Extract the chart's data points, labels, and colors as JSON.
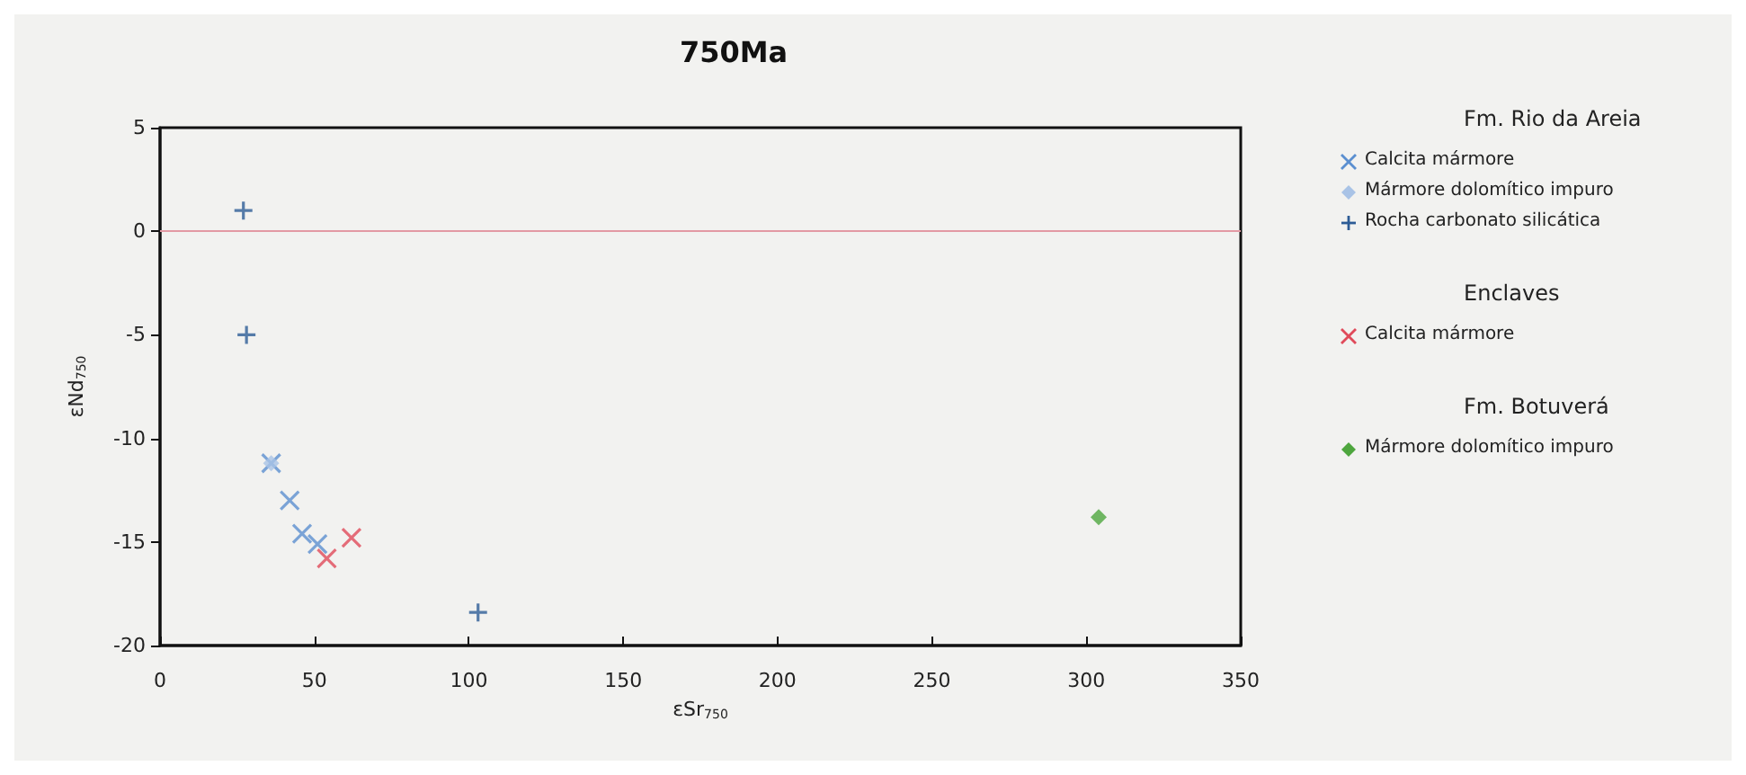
{
  "chart_data": {
    "type": "scatter",
    "title": "750Ma",
    "xlabel": "εSr$_{750}$",
    "ylabel": "εNd$_{750}$",
    "xlim": [
      0,
      350
    ],
    "xticks": [
      0,
      50,
      100,
      150,
      200,
      250,
      300,
      350
    ],
    "ylim": [
      -20,
      5
    ],
    "yticks": [
      -20,
      -15,
      -10,
      -5,
      0,
      5
    ],
    "grid": false,
    "legend": "right",
    "annotations": [
      "Fm. Rio da Areia",
      "Enclaves",
      "Fm. Botuverá"
    ],
    "ref_lines": [
      {
        "axis": "y",
        "value": 0,
        "color": "#e39aa4"
      }
    ],
    "series": [
      {
        "name": "Calcita mármore",
        "color": "#5b8fd0",
        "marker": "cross",
        "x": [
          36,
          42,
          46,
          51
        ],
        "values": [
          -11.2,
          -13.0,
          -14.6,
          -15.1
        ]
      },
      {
        "name": "Mármore dolomítico impuro",
        "color": "#a9c3e6",
        "marker": "diamond",
        "x": [
          36
        ],
        "values": [
          -11.2
        ]
      },
      {
        "name": "Rocha carbonato silicática",
        "color": "#2d5c96",
        "marker": "plus",
        "x": [
          27,
          28,
          103
        ],
        "values": [
          1,
          -5,
          -18.4
        ]
      },
      {
        "name": "Calcita mármore",
        "color": "#e04a5a",
        "marker": "cross",
        "x": [
          54,
          62
        ],
        "values": [
          -15.8,
          -14.8
        ]
      },
      {
        "name": "Mármore dolomítico impuro",
        "color": "#4ea63e",
        "marker": "diamond",
        "x": [
          304
        ],
        "values": [
          -13.8
        ]
      }
    ]
  }
}
